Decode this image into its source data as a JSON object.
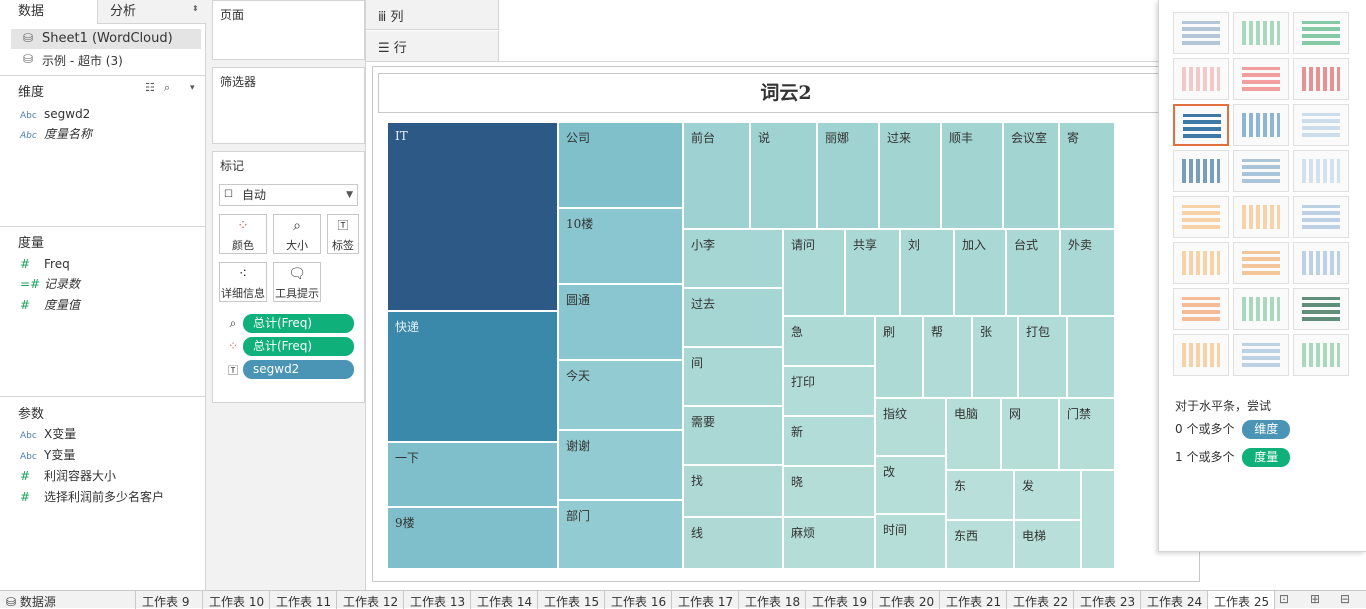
{
  "left": {
    "tab_data": "数据",
    "tab_analysis": "分析",
    "datasources": [
      "Sheet1 (WordCloud)",
      "示例 - 超市 (3)"
    ],
    "dimensions_title": "维度",
    "dimensions": [
      {
        "type": "Abc",
        "name": "segwd2",
        "italic": false
      },
      {
        "type": "Abc",
        "name": "度量名称",
        "italic": true
      }
    ],
    "measures_title": "度量",
    "measures": [
      {
        "type": "#",
        "name": "Freq",
        "italic": false
      },
      {
        "type": "=#",
        "name": "记录数",
        "italic": true
      },
      {
        "type": "#",
        "name": "度量值",
        "italic": true
      }
    ],
    "params_title": "参数",
    "params": [
      {
        "type": "Abc",
        "name": "X变量"
      },
      {
        "type": "Abc",
        "name": "Y变量"
      },
      {
        "type": "#",
        "name": "利润容器大小"
      },
      {
        "type": "#",
        "name": "选择利润前多少名客户"
      }
    ]
  },
  "shelves": {
    "pages": "页面",
    "filters": "筛选器",
    "marks": "标记",
    "mark_type": "自动",
    "buttons": [
      "颜色",
      "大小",
      "标签",
      "详细信息",
      "工具提示"
    ],
    "pills": [
      {
        "icon": "size-icon",
        "label": "总计(Freq)",
        "color": "green"
      },
      {
        "icon": "color-icon",
        "label": "总计(Freq)",
        "color": "green"
      },
      {
        "icon": "label-icon",
        "label": "segwd2",
        "color": "blue"
      }
    ],
    "columns": "列",
    "rows": "行"
  },
  "viz": {
    "title": "词云2",
    "cells": [
      {
        "t": "IT",
        "c": "#2c5985",
        "d": true
      },
      {
        "t": "快递",
        "c": "#3a88aa",
        "d": true
      },
      {
        "t": "一下",
        "c": "#7fbfcb"
      },
      {
        "t": "9楼",
        "c": "#7fbfcb"
      },
      {
        "t": "公司",
        "c": "#7fc0cb"
      },
      {
        "t": "10楼",
        "c": "#89c6cf"
      },
      {
        "t": "圆通",
        "c": "#89c6cf"
      },
      {
        "t": "今天",
        "c": "#92cbd1"
      },
      {
        "t": "谢谢",
        "c": "#92cbd1"
      },
      {
        "t": "部门",
        "c": "#92cbd1"
      },
      {
        "t": "前台",
        "c": "#9dd1d2"
      },
      {
        "t": "说",
        "c": "#9fd3d1"
      },
      {
        "t": "丽娜",
        "c": "#9fd3d1"
      },
      {
        "t": "过来",
        "c": "#a2d4d2"
      },
      {
        "t": "顺丰",
        "c": "#a2d4d2"
      },
      {
        "t": "会议室",
        "c": "#a2d4d2"
      },
      {
        "t": "寄",
        "c": "#a2d4d2"
      },
      {
        "t": "小李",
        "c": "#a6d6d3"
      },
      {
        "t": "请问",
        "c": "#aad8d4"
      },
      {
        "t": "共享",
        "c": "#aad8d4"
      },
      {
        "t": "刘",
        "c": "#aad8d4"
      },
      {
        "t": "加入",
        "c": "#aad8d4"
      },
      {
        "t": "台式",
        "c": "#aad8d4"
      },
      {
        "t": "外卖",
        "c": "#aad8d4"
      },
      {
        "t": "过去",
        "c": "#a6d6d3"
      },
      {
        "t": "急",
        "c": "#aedad5"
      },
      {
        "t": "刷",
        "c": "#aedad5"
      },
      {
        "t": "帮",
        "c": "#b0dbd6"
      },
      {
        "t": "张",
        "c": "#b0dbd6"
      },
      {
        "t": "打包",
        "c": "#b0dbd6"
      },
      {
        "t": "",
        "c": "#b0dbd6"
      },
      {
        "t": "间",
        "c": "#aad8d4"
      },
      {
        "t": "打印",
        "c": "#b2dcd7"
      },
      {
        "t": "需要",
        "c": "#aad8d4"
      },
      {
        "t": "新",
        "c": "#b2dcd7"
      },
      {
        "t": "指纹",
        "c": "#b4ddd8"
      },
      {
        "t": "电脑",
        "c": "#b6ded8"
      },
      {
        "t": "网",
        "c": "#b6ded8"
      },
      {
        "t": "门禁",
        "c": "#b6ded8"
      },
      {
        "t": "找",
        "c": "#aed9d5"
      },
      {
        "t": "晓",
        "c": "#b4ddd8"
      },
      {
        "t": "改",
        "c": "#b6ded8"
      },
      {
        "t": "东",
        "c": "#b8dfd9"
      },
      {
        "t": "发",
        "c": "#b8dfd9"
      },
      {
        "t": "",
        "c": "#b8dfd9"
      },
      {
        "t": "线",
        "c": "#aed9d5"
      },
      {
        "t": "麻烦",
        "c": "#b4ddd8"
      },
      {
        "t": "时间",
        "c": "#b6ded8"
      },
      {
        "t": "东西",
        "c": "#b8dfd9"
      },
      {
        "t": "电梯",
        "c": "#b8dfd9"
      }
    ]
  },
  "showme": {
    "hint_title": "对于水平条，尝试",
    "hint_dim_prefix": "0 个或多个",
    "hint_dim_tag": "维度",
    "hint_meas_prefix": "1 个或多个",
    "hint_meas_tag": "度量"
  },
  "bottom_tabs": [
    "数据源",
    "工作表 9",
    "工作表 10",
    "工作表 11",
    "工作表 12",
    "工作表 13",
    "工作表 14",
    "工作表 15",
    "工作表 16",
    "工作表 17",
    "工作表 18",
    "工作表 19",
    "工作表 20",
    "工作表 21",
    "工作表 22",
    "工作表 23",
    "工作表 24",
    "工作表 25"
  ]
}
